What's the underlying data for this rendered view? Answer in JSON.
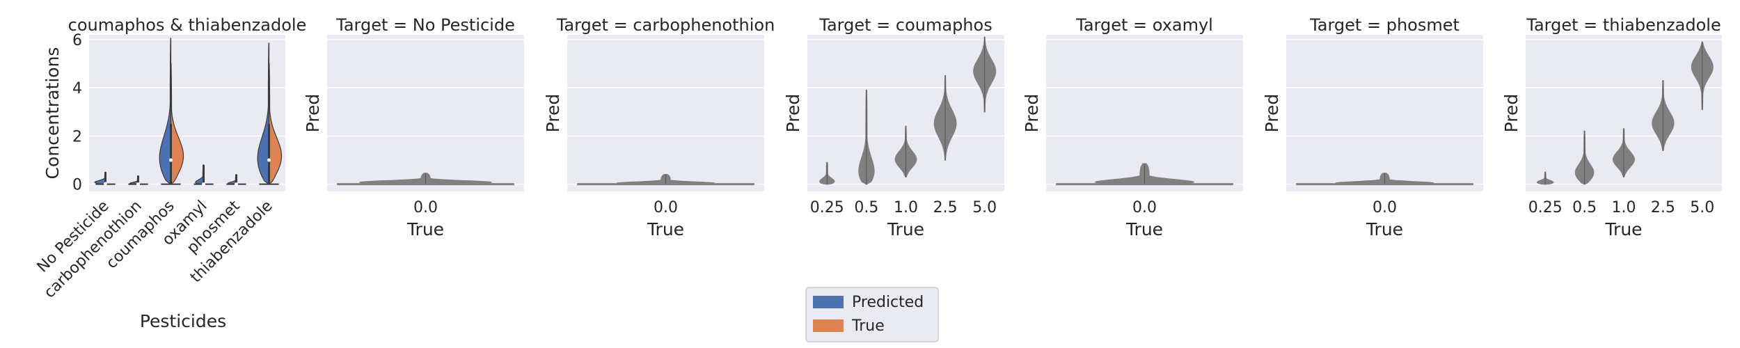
{
  "colors": {
    "predicted": "#4c72b0",
    "true": "#dd8452",
    "gray_violin": "#808080",
    "axes_bg": "#eaeaf2",
    "grid": "#ffffff"
  },
  "legend": {
    "items": [
      "Predicted",
      "True"
    ]
  },
  "chart_data": [
    {
      "type": "violin",
      "title": "coumaphos & thiabenzadole",
      "xlabel": "Pesticides",
      "ylabel": "Concentrations",
      "categories": [
        "No Pesticide",
        "carbophenothion",
        "coumaphos",
        "oxamyl",
        "phosmet",
        "thiabenzadole"
      ],
      "yticks": [
        0,
        2,
        4,
        6
      ],
      "ylim": [
        -0.3,
        6.2
      ],
      "split": true,
      "series": [
        {
          "name": "Predicted",
          "max": [
            0.5,
            0.35,
            6.05,
            0.8,
            0.4,
            5.85
          ],
          "peak": [
            0.05,
            0.0,
            0.8,
            0.0,
            0.0,
            0.8
          ],
          "median": [
            0.02,
            0.0,
            1.0,
            0.0,
            0.0,
            1.0
          ]
        },
        {
          "name": "True",
          "max": [
            0.0,
            0.0,
            5.0,
            0.0,
            0.0,
            5.0
          ],
          "peak": [
            0.0,
            0.0,
            1.0,
            0.0,
            0.0,
            1.0
          ],
          "median": [
            0.0,
            0.0,
            1.0,
            0.0,
            0.0,
            1.0
          ]
        }
      ],
      "legend": "outside-bottom"
    },
    {
      "type": "violin",
      "title": "Target = No Pesticide",
      "xlabel": "True",
      "ylabel": "Pred",
      "x": [
        "0.0"
      ],
      "distributions": [
        {
          "min": 0.0,
          "max": 0.45,
          "peak": 0.05
        }
      ],
      "ylim": [
        -0.3,
        6.2
      ]
    },
    {
      "type": "violin",
      "title": "Target = carbophenothion",
      "xlabel": "True",
      "ylabel": "Pred",
      "x": [
        "0.0"
      ],
      "distributions": [
        {
          "min": 0.0,
          "max": 0.4,
          "peak": 0.0
        }
      ],
      "ylim": [
        -0.3,
        6.2
      ]
    },
    {
      "type": "violin",
      "title": "Target = coumaphos",
      "xlabel": "True",
      "ylabel": "Pred",
      "x": [
        "0.25",
        "0.5",
        "1.0",
        "2.5",
        "5.0"
      ],
      "distributions": [
        {
          "min": 0.0,
          "max": 0.9,
          "peak": 0.05
        },
        {
          "min": 0.0,
          "max": 3.9,
          "peak": 0.3
        },
        {
          "min": 0.3,
          "max": 2.4,
          "peak": 1.0
        },
        {
          "min": 1.0,
          "max": 4.5,
          "peak": 2.5
        },
        {
          "min": 3.0,
          "max": 6.1,
          "peak": 4.7
        }
      ],
      "ylim": [
        -0.3,
        6.2
      ]
    },
    {
      "type": "violin",
      "title": "Target = oxamyl",
      "xlabel": "True",
      "ylabel": "Pred",
      "x": [
        "0.0"
      ],
      "distributions": [
        {
          "min": 0.0,
          "max": 0.85,
          "peak": 0.0
        }
      ],
      "ylim": [
        -0.3,
        6.2
      ]
    },
    {
      "type": "violin",
      "title": "Target = phosmet",
      "xlabel": "True",
      "ylabel": "Pred",
      "x": [
        "0.0"
      ],
      "distributions": [
        {
          "min": 0.0,
          "max": 0.45,
          "peak": 0.0
        }
      ],
      "ylim": [
        -0.3,
        6.2
      ]
    },
    {
      "type": "violin",
      "title": "Target = thiabenzadole",
      "xlabel": "True",
      "ylabel": "Pred",
      "x": [
        "0.25",
        "0.5",
        "1.0",
        "2.5",
        "5.0"
      ],
      "distributions": [
        {
          "min": 0.0,
          "max": 0.5,
          "peak": 0.05
        },
        {
          "min": 0.0,
          "max": 2.2,
          "peak": 0.4
        },
        {
          "min": 0.3,
          "max": 2.3,
          "peak": 1.0
        },
        {
          "min": 1.4,
          "max": 4.3,
          "peak": 2.5
        },
        {
          "min": 3.1,
          "max": 5.9,
          "peak": 4.9
        }
      ],
      "ylim": [
        -0.3,
        6.2
      ]
    }
  ]
}
